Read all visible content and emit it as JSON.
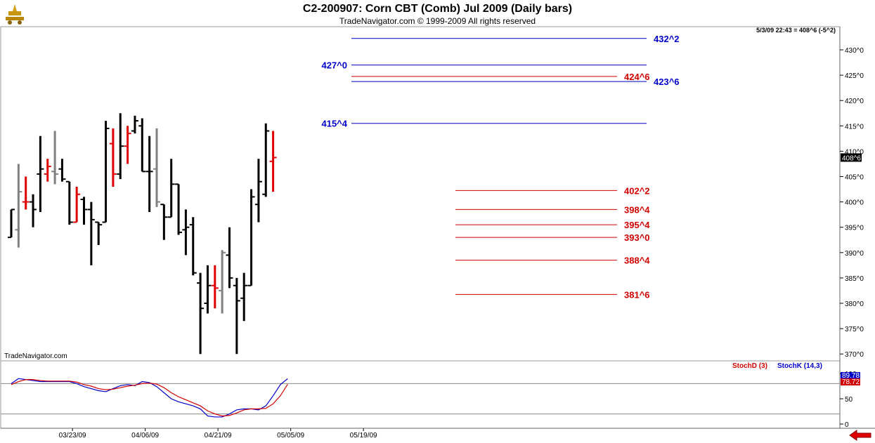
{
  "header": {
    "title": "C2-200907:  Corn CBT (Comb) Jul 2009  (Daily bars)",
    "subtitle": "TradeNavigator.com © 1999-2009 All rights reserved",
    "status": "5/3/09 22:43 = 408^6 (-5^2)",
    "brand": "TradeNavigator.com"
  },
  "chart_data": [
    {
      "type": "bar",
      "subtype": "ohlc",
      "price_axis": {
        "range": [
          368,
          432
        ],
        "ticks": [
          {
            "v": 430,
            "label": "430^0"
          },
          {
            "v": 425,
            "label": "425^0"
          },
          {
            "v": 420,
            "label": "420^0"
          },
          {
            "v": 415,
            "label": "415^0"
          },
          {
            "v": 410,
            "label": "410^0"
          },
          {
            "v": 405,
            "label": "405^0"
          },
          {
            "v": 400,
            "label": "400^0"
          },
          {
            "v": 395,
            "label": "395^0"
          },
          {
            "v": 390,
            "label": "390^0"
          },
          {
            "v": 385,
            "label": "385^0"
          },
          {
            "v": 380,
            "label": "380^0"
          },
          {
            "v": 375,
            "label": "375^0"
          },
          {
            "v": 370,
            "label": "370^0"
          }
        ],
        "last_price_label": "408^6",
        "last_price": 408.75
      },
      "x_axis": {
        "ticks": [
          {
            "i": 9,
            "label": "03/23/09"
          },
          {
            "i": 19,
            "label": "04/06/09"
          },
          {
            "i": 29,
            "label": "04/21/09"
          },
          {
            "i": 39,
            "label": "05/05/09"
          },
          {
            "i": 49,
            "label": "05/19/09"
          }
        ]
      },
      "bars": [
        {
          "i": 0,
          "o": 393,
          "h": 398.5,
          "l": 393,
          "c": 398.5,
          "color": "black"
        },
        {
          "i": 1,
          "o": 394.5,
          "h": 407.5,
          "l": 391,
          "c": 402,
          "color": "gray"
        },
        {
          "i": 2,
          "o": 400,
          "h": 405,
          "l": 398.5,
          "c": 400,
          "color": "red"
        },
        {
          "i": 3,
          "o": 400,
          "h": 401.5,
          "l": 395,
          "c": 398.5,
          "color": "black"
        },
        {
          "i": 4,
          "o": 405.5,
          "h": 413,
          "l": 398,
          "c": 406.5,
          "color": "black"
        },
        {
          "i": 5,
          "o": 405.5,
          "h": 408.5,
          "l": 404,
          "c": 407,
          "color": "red"
        },
        {
          "i": 6,
          "o": 406,
          "h": 414,
          "l": 403.5,
          "c": 405.5,
          "color": "gray"
        },
        {
          "i": 7,
          "o": 406.5,
          "h": 408.5,
          "l": 404,
          "c": 404.5,
          "color": "black"
        },
        {
          "i": 8,
          "o": 404,
          "h": 404,
          "l": 395.5,
          "c": 396,
          "color": "black"
        },
        {
          "i": 9,
          "o": 396,
          "h": 403,
          "l": 396,
          "c": 401.5,
          "color": "red"
        },
        {
          "i": 10,
          "o": 400.5,
          "h": 401,
          "l": 395.5,
          "c": 398.5,
          "color": "black"
        },
        {
          "i": 11,
          "o": 398.5,
          "h": 400,
          "l": 387.5,
          "c": 396.5,
          "color": "black"
        },
        {
          "i": 12,
          "o": 396,
          "h": 396,
          "l": 391.5,
          "c": 395.5,
          "color": "black"
        },
        {
          "i": 13,
          "o": 396,
          "h": 416,
          "l": 396,
          "c": 414.5,
          "color": "black"
        },
        {
          "i": 14,
          "o": 411.5,
          "h": 414.5,
          "l": 403,
          "c": 405.5,
          "color": "red"
        },
        {
          "i": 15,
          "o": 405.5,
          "h": 417.5,
          "l": 404.5,
          "c": 411,
          "color": "black"
        },
        {
          "i": 16,
          "o": 411,
          "h": 415,
          "l": 407.5,
          "c": 413.5,
          "color": "red"
        },
        {
          "i": 17,
          "o": 414,
          "h": 417,
          "l": 413.5,
          "c": 416,
          "color": "black"
        },
        {
          "i": 18,
          "o": 415,
          "h": 416.5,
          "l": 406,
          "c": 406,
          "color": "black"
        },
        {
          "i": 19,
          "o": 406,
          "h": 413,
          "l": 398,
          "c": 406,
          "color": "black"
        },
        {
          "i": 20,
          "o": 406.5,
          "h": 414.5,
          "l": 399,
          "c": 400,
          "color": "gray"
        },
        {
          "i": 21,
          "o": 399.5,
          "h": 399.5,
          "l": 392.5,
          "c": 397,
          "color": "black"
        },
        {
          "i": 22,
          "o": 397,
          "h": 408.5,
          "l": 397,
          "c": 403.5,
          "color": "black"
        },
        {
          "i": 23,
          "o": 403.5,
          "h": 403.5,
          "l": 393.5,
          "c": 394,
          "color": "black"
        },
        {
          "i": 24,
          "o": 394.5,
          "h": 398.5,
          "l": 389.5,
          "c": 395,
          "color": "black"
        },
        {
          "i": 25,
          "o": 395.5,
          "h": 397,
          "l": 385.5,
          "c": 386,
          "color": "black"
        },
        {
          "i": 26,
          "o": 384,
          "h": 386,
          "l": 370,
          "c": 379,
          "color": "black"
        },
        {
          "i": 27,
          "o": 380,
          "h": 387.5,
          "l": 378,
          "c": 383.5,
          "color": "black"
        },
        {
          "i": 28,
          "o": 383.5,
          "h": 387.5,
          "l": 379,
          "c": 383,
          "color": "red"
        },
        {
          "i": 29,
          "o": 382.5,
          "h": 390.5,
          "l": 378,
          "c": 390,
          "color": "gray"
        },
        {
          "i": 30,
          "o": 389.5,
          "h": 395,
          "l": 383,
          "c": 385,
          "color": "black"
        },
        {
          "i": 31,
          "o": 383.5,
          "h": 385,
          "l": 370,
          "c": 380.5,
          "color": "black"
        },
        {
          "i": 32,
          "o": 381,
          "h": 386,
          "l": 376.5,
          "c": 383.5,
          "color": "black"
        },
        {
          "i": 33,
          "o": 383.5,
          "h": 402.5,
          "l": 383.5,
          "c": 401,
          "color": "black"
        },
        {
          "i": 34,
          "o": 399.5,
          "h": 408.5,
          "l": 396,
          "c": 404,
          "color": "black"
        },
        {
          "i": 35,
          "o": 401.5,
          "h": 415.5,
          "l": 401,
          "c": 414,
          "color": "black"
        },
        {
          "i": 36,
          "o": 408,
          "h": 414,
          "l": 402,
          "c": 408.75,
          "color": "red"
        }
      ],
      "levels": [
        {
          "value": 432.25,
          "label": "432^2",
          "color": "#0000c8",
          "label_side": "right"
        },
        {
          "value": 427.0,
          "label": "427^0",
          "color": "#0000c8",
          "label_side": "left"
        },
        {
          "value": 424.75,
          "label": "424^6",
          "color": "#d20000",
          "label_side": "right"
        },
        {
          "value": 423.75,
          "label": "423^6",
          "color": "#0000c8",
          "label_side": "right-below"
        },
        {
          "value": 415.5,
          "label": "415^4",
          "color": "#0000c8",
          "label_side": "left"
        },
        {
          "value": 402.25,
          "label": "402^2",
          "color": "#d20000",
          "label_side": "right"
        },
        {
          "value": 398.5,
          "label": "398^4",
          "color": "#d20000",
          "label_side": "right"
        },
        {
          "value": 395.5,
          "label": "395^4",
          "color": "#d20000",
          "label_side": "right"
        },
        {
          "value": 393.0,
          "label": "393^0",
          "color": "#d20000",
          "label_side": "right"
        },
        {
          "value": 388.5,
          "label": "388^4",
          "color": "#d20000",
          "label_side": "right"
        },
        {
          "value": 381.75,
          "label": "381^6",
          "color": "#d20000",
          "label_side": "right"
        }
      ]
    },
    {
      "type": "line",
      "ylim": [
        0,
        100
      ],
      "y_ticks": [
        {
          "v": 100,
          "label": "100"
        },
        {
          "v": 50,
          "label": "50"
        },
        {
          "v": 0,
          "label": "0"
        }
      ],
      "reference_lines": [
        80,
        20
      ],
      "legend": [
        {
          "name": "StochD (3)",
          "color": "#d20000"
        },
        {
          "name": "StochK (14,3)",
          "color": "#0000c8"
        }
      ],
      "last_value_labels": [
        {
          "label": "89.78",
          "color": "#0000c8",
          "v": 89.78
        },
        {
          "label": "78.72",
          "color": "#d20000",
          "v": 78.72
        }
      ],
      "series": [
        {
          "name": "StochK (14,3)",
          "color": "#0000c8",
          "values": [
            80,
            90,
            88,
            86,
            84,
            84,
            84,
            84,
            84,
            80,
            74,
            70,
            66,
            64,
            70,
            76,
            78,
            76,
            84,
            82,
            74,
            62,
            50,
            44,
            40,
            36,
            30,
            16,
            14,
            14,
            20,
            28,
            30,
            30,
            28,
            36,
            56,
            78,
            89.78
          ]
        },
        {
          "name": "StochD (3)",
          "color": "#d20000",
          "values": [
            78,
            84,
            88,
            88,
            86,
            85,
            85,
            85,
            85,
            83,
            78,
            75,
            70,
            68,
            69,
            72,
            75,
            77,
            80,
            81,
            79,
            72,
            62,
            54,
            48,
            42,
            36,
            26,
            20,
            16,
            17,
            22,
            28,
            30,
            30,
            31,
            40,
            56,
            78.72
          ]
        }
      ]
    }
  ]
}
